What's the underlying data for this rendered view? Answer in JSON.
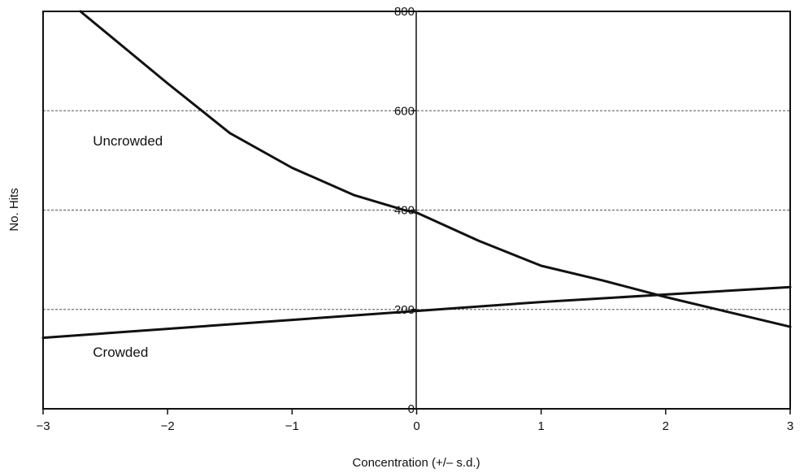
{
  "chart_data": {
    "type": "line",
    "title": "",
    "xlabel": "Concentration (+/– s.d.)",
    "ylabel": "No. Hits",
    "xlim": [
      -3,
      3
    ],
    "ylim": [
      0,
      800
    ],
    "x_ticks": [
      -3,
      -2,
      -1,
      0,
      1,
      2,
      3
    ],
    "x_tick_labels": [
      "−3",
      "−2",
      "−1",
      "0",
      "1",
      "2",
      "3"
    ],
    "y_ticks": [
      0,
      200,
      400,
      600,
      800
    ],
    "y_tick_labels": [
      "0",
      "200",
      "400",
      "600",
      "800"
    ],
    "grid": "horizontal dashed at 200, 400, 600",
    "legend": "none (series labelled directly on plot)",
    "series": [
      {
        "name": "Uncrowded",
        "color": "#111111",
        "x": [
          -2.7,
          -2.0,
          -1.5,
          -1.0,
          -0.5,
          -0.1,
          0.0,
          0.5,
          1.0,
          1.5,
          2.0,
          2.5,
          3.0
        ],
        "values": [
          800,
          655,
          555,
          485,
          430,
          400,
          395,
          338,
          288,
          258,
          225,
          195,
          165
        ]
      },
      {
        "name": "Crowded",
        "color": "#111111",
        "x": [
          -3.0,
          -2.0,
          -1.0,
          0.0,
          1.0,
          2.0,
          3.0
        ],
        "values": [
          143,
          161,
          179,
          197,
          215,
          230,
          245
        ]
      }
    ],
    "annotations": [
      {
        "text": "Uncrowded",
        "x": -2.6,
        "y": 530
      },
      {
        "text": "Crowded",
        "x": -2.6,
        "y": 105
      }
    ]
  }
}
